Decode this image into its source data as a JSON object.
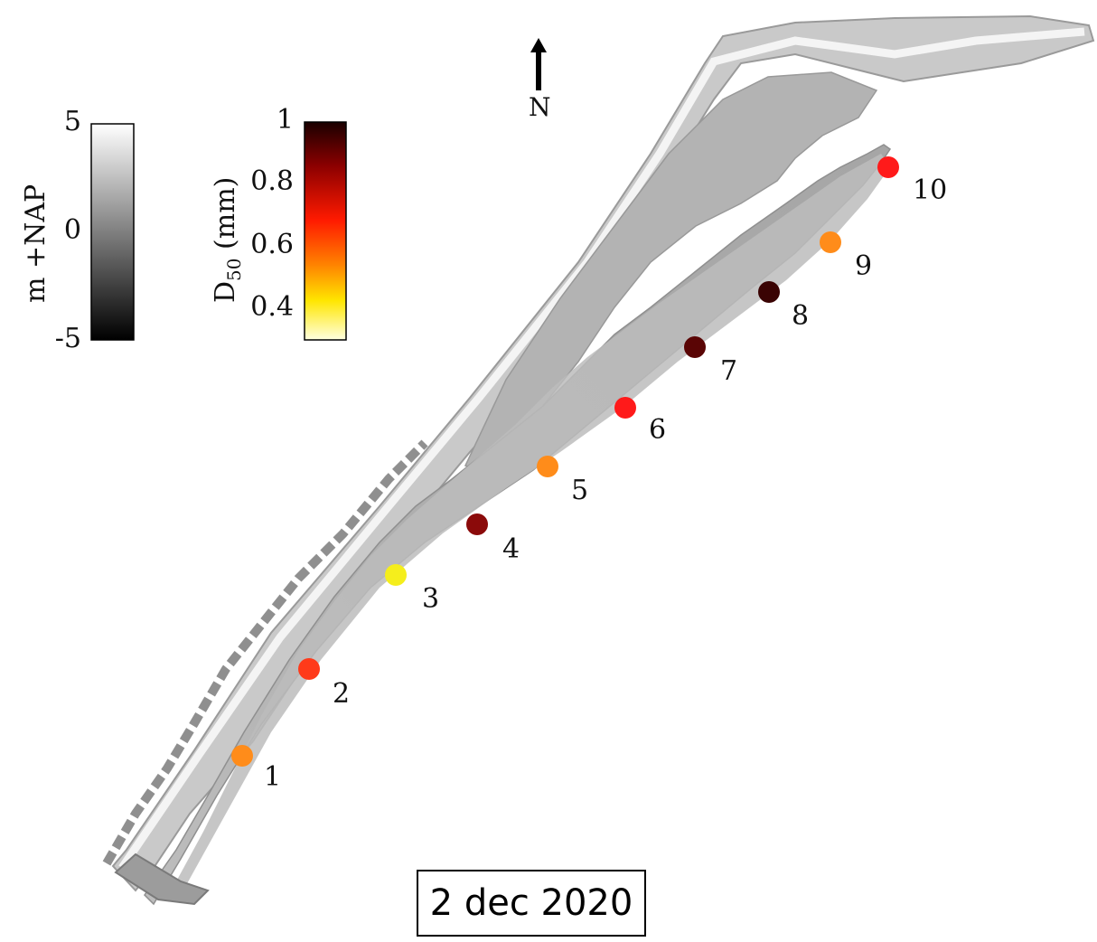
{
  "elevation_colorbar": {
    "title": "m +NAP",
    "ticks": [
      "5",
      "0",
      "-5"
    ],
    "top_color": "#ffffff",
    "bottom_color": "#000000"
  },
  "grain_colorbar": {
    "title_main": "D",
    "title_sub": "50",
    "title_unit": " (mm)",
    "ticks": [
      "1",
      "0.8",
      "0.6",
      "0.4"
    ],
    "colors": [
      "#1a0000",
      "#8b0000",
      "#ff1a00",
      "#ff8000",
      "#ffe600",
      "#ffffe0"
    ]
  },
  "north_arrow": {
    "label": "N"
  },
  "date_label": "2 dec 2020",
  "samples": [
    {
      "label": "1",
      "color": "#ff8c1a"
    },
    {
      "label": "2",
      "color": "#ff3a1a"
    },
    {
      "label": "3",
      "color": "#f5ee1c"
    },
    {
      "label": "4",
      "color": "#8b0a0a"
    },
    {
      "label": "5",
      "color": "#ff8c1a"
    },
    {
      "label": "6",
      "color": "#ff1a1a"
    },
    {
      "label": "7",
      "color": "#5a0505"
    },
    {
      "label": "8",
      "color": "#3a0303"
    },
    {
      "label": "9",
      "color": "#ff8c1a"
    },
    {
      "label": "10",
      "color": "#ff1a1a"
    }
  ]
}
